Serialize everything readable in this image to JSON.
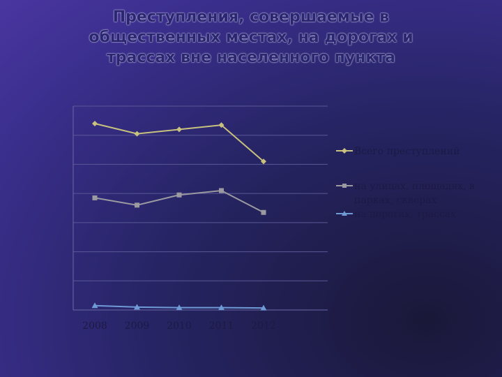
{
  "slide": {
    "title_lines": [
      "Преступления, совершаемые в",
      "общественных местах, на дорогах и",
      "трассах вне населенного пункта"
    ]
  },
  "chart_data": {
    "type": "line",
    "categories": [
      "2008",
      "2009",
      "2010",
      "2011",
      "2012"
    ],
    "ylim": [
      0,
      700
    ],
    "grid": true,
    "legend": "right",
    "series": [
      {
        "name": "Всего преступлений",
        "values": [
          640,
          605,
          620,
          635,
          510
        ],
        "color": "#c8c27e",
        "marker": "diamond"
      },
      {
        "name": "на улицах, площадях, в парках, скверах",
        "values": [
          385,
          360,
          395,
          410,
          335
        ],
        "color": "#9a9aa0",
        "marker": "square"
      },
      {
        "name": "на дорогах, трассах",
        "values": [
          15,
          10,
          8,
          8,
          7
        ],
        "color": "#6f9ad6",
        "marker": "triangle"
      }
    ]
  }
}
